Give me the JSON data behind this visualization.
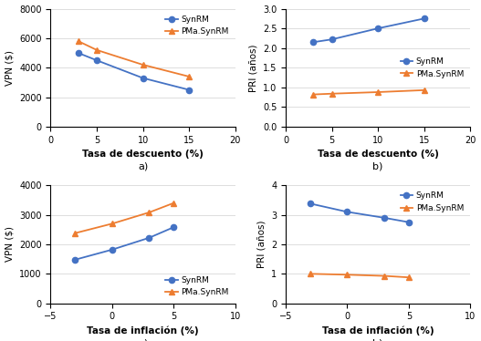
{
  "top_left": {
    "x": [
      3,
      5,
      10,
      15
    ],
    "synrm": [
      5000,
      4500,
      3300,
      2500
    ],
    "pma": [
      5800,
      5200,
      4200,
      3400
    ],
    "xlabel": "Tasa de descuento (%)",
    "ylabel": "VPN ($)",
    "label": "a)",
    "xlim": [
      0,
      20
    ],
    "ylim": [
      0,
      8000
    ],
    "yticks": [
      0,
      2000,
      4000,
      6000,
      8000
    ],
    "xticks": [
      0,
      5,
      10,
      15,
      20
    ],
    "legend_loc": "upper right"
  },
  "top_right": {
    "x": [
      3,
      5,
      10,
      15
    ],
    "synrm": [
      2.15,
      2.22,
      2.5,
      2.75
    ],
    "pma": [
      0.82,
      0.84,
      0.88,
      0.93
    ],
    "xlabel": "Tasa de descuento (%)",
    "ylabel": "PRI (años)",
    "label": "b)",
    "xlim": [
      0,
      20
    ],
    "ylim": [
      0,
      3
    ],
    "yticks": [
      0,
      0.5,
      1.0,
      1.5,
      2.0,
      2.5,
      3.0
    ],
    "xticks": [
      0,
      5,
      10,
      15,
      20
    ],
    "legend_loc": "center right"
  },
  "bot_left": {
    "x": [
      -3,
      0,
      3,
      5
    ],
    "synrm": [
      1480,
      1820,
      2220,
      2580
    ],
    "pma": [
      2380,
      2700,
      3080,
      3400
    ],
    "xlabel": "Tasa de inflación (%)",
    "ylabel": "VPN ($)",
    "label": "a)",
    "xlim": [
      -5,
      10
    ],
    "ylim": [
      0,
      4000
    ],
    "yticks": [
      0,
      1000,
      2000,
      3000,
      4000
    ],
    "xticks": [
      -5,
      0,
      5,
      10
    ],
    "legend_loc": "lower right"
  },
  "bot_right": {
    "x": [
      -3,
      0,
      3,
      5
    ],
    "synrm": [
      3.38,
      3.1,
      2.9,
      2.75
    ],
    "pma": [
      1.0,
      0.97,
      0.93,
      0.88
    ],
    "xlabel": "Tasa de inflación (%)",
    "ylabel": "PRI (años)",
    "label": "b)",
    "xlim": [
      -5,
      10
    ],
    "ylim": [
      0,
      4
    ],
    "yticks": [
      0,
      1,
      2,
      3,
      4
    ],
    "xticks": [
      -5,
      0,
      5,
      10
    ],
    "legend_loc": "upper right"
  },
  "synrm_color": "#4472C4",
  "pma_color": "#ED7D31",
  "synrm_label": "SynRM",
  "pma_label": "PMa.SynRM",
  "marker_synrm": "o",
  "marker_pma": "^",
  "linewidth": 1.3,
  "markersize": 4.5,
  "tick_fontsize": 7,
  "label_fontsize": 7.5,
  "legend_fontsize": 6.5,
  "sublabel_fontsize": 8
}
